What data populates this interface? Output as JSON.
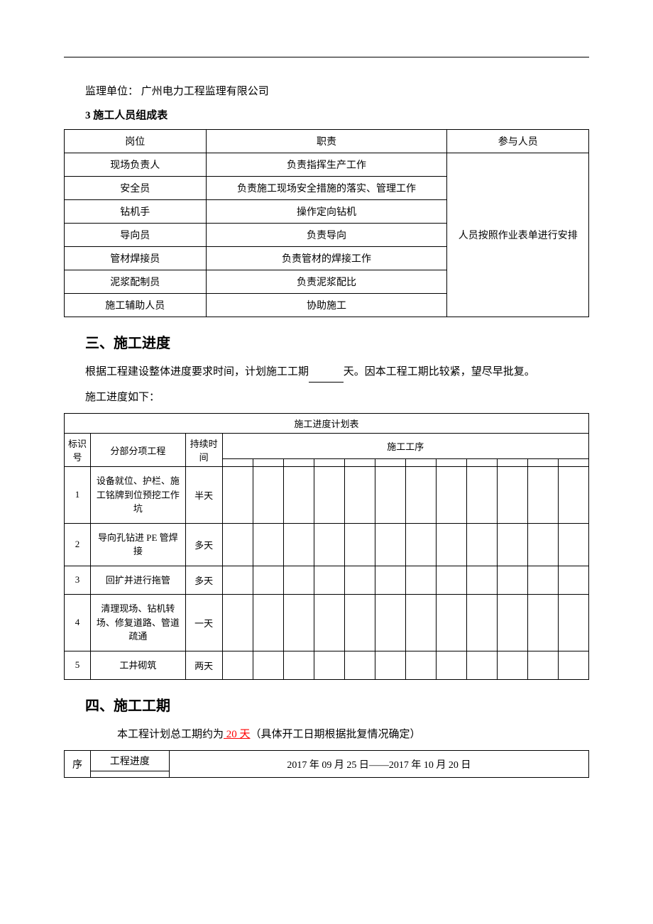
{
  "colors": {
    "text": "#000000",
    "background": "#ffffff",
    "border": "#000000",
    "red": "#ff0000"
  },
  "typography": {
    "body_font": "SimSun",
    "body_size_pt": 11,
    "h2_size_pt": 15,
    "h2_weight": "bold"
  },
  "supervisor_line": {
    "label": "监理单位：",
    "value": "广州电力工程监理有限公司"
  },
  "personnel_section": {
    "heading": "3 施工人员组成表",
    "columns": [
      "岗位",
      "职责",
      "参与人员"
    ],
    "rows": [
      {
        "role": "现场负责人",
        "duty": "负责指挥生产工作"
      },
      {
        "role": "安全员",
        "duty": "负责施工现场安全措施的落实、管理工作"
      },
      {
        "role": "钻机手",
        "duty": "操作定向钻机"
      },
      {
        "role": "导向员",
        "duty": "负责导向"
      },
      {
        "role": "管材焊接员",
        "duty": "负责管材的焊接工作"
      },
      {
        "role": "泥浆配制员",
        "duty": "负责泥浆配比"
      },
      {
        "role": "施工辅助人员",
        "duty": "协助施工"
      }
    ],
    "participant_note": "人员按照作业表单进行安排"
  },
  "progress_section": {
    "heading": "三、施工进度",
    "intro_pre": "根据工程建设整体进度要求时间，计划施工工期",
    "intro_post": "天。因本工程工期比较紧，望尽早批复。",
    "subline": "施工进度如下：",
    "table_title": "施工进度计划表",
    "col_id": "标识号",
    "col_task": "分部分项工程",
    "col_duration": "持续时间",
    "col_process": "施工工序",
    "num_process_cols": 12,
    "rows": [
      {
        "id": "1",
        "task": "设备就位、护栏、施工铭牌到位预挖工作坑",
        "duration": "半天"
      },
      {
        "id": "2",
        "task": "导向孔钻进 PE 管焊接",
        "duration": "多天"
      },
      {
        "id": "3",
        "task": "回扩并进行拖管",
        "duration": "多天"
      },
      {
        "id": "4",
        "task": "清理现场、钻机转场、修复道路、管道疏通",
        "duration": "一天"
      },
      {
        "id": "5",
        "task": "工井砌筑",
        "duration": "两天"
      }
    ]
  },
  "duration_section": {
    "heading": "四、施工工期",
    "line_pre": "本工程计划总工期约为",
    "days_value": "  20 天",
    "line_post": "（具体开工日期根据批复情况确定）",
    "gantt": {
      "col_seq": "序",
      "col_progress": "工程进度",
      "date_range": "2017 年 09 月 25 日——2017 年 10 月 20 日"
    }
  }
}
